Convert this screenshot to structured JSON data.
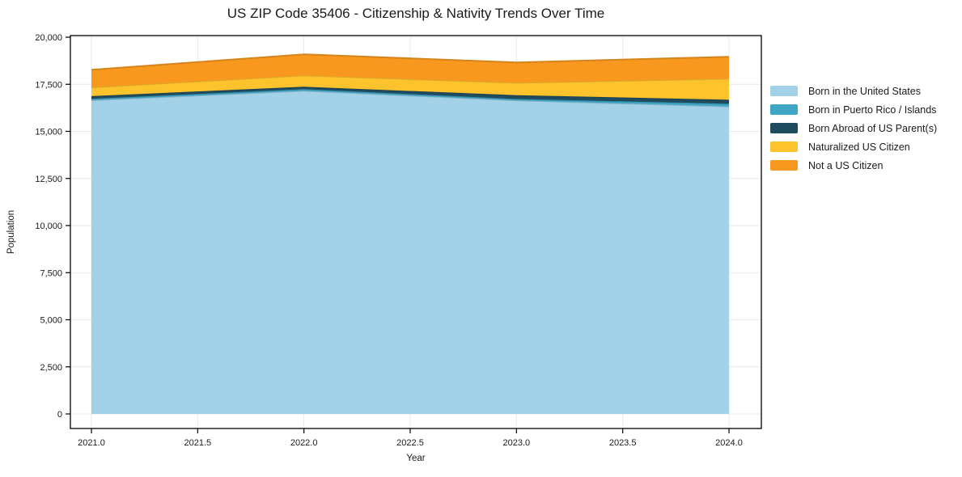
{
  "title": "US ZIP Code 35406 - Citizenship & Nativity Trends Over Time",
  "chart_data": {
    "type": "area",
    "stacked": true,
    "title": "US ZIP Code 35406 - Citizenship & Nativity Trends Over Time",
    "xlabel": "Year",
    "ylabel": "Population",
    "x": [
      2021,
      2022,
      2023,
      2024
    ],
    "x_tick_labels": [
      "2021.0",
      "2021.5",
      "2022.0",
      "2022.5",
      "2023.0",
      "2023.5",
      "2024.0"
    ],
    "y_tick_labels": [
      "0",
      "2,500",
      "5,000",
      "7,500",
      "10,000",
      "12,500",
      "15,000",
      "17,500",
      "20,000"
    ],
    "ylim": [
      0,
      20000
    ],
    "grid": true,
    "legend_position": "right-outside",
    "series": [
      {
        "name": "Born in the United States",
        "color": "#a3d2e8",
        "values": [
          16650,
          17150,
          16640,
          16320
        ]
      },
      {
        "name": "Born in Puerto Rico / Islands",
        "color": "#3fa6c6",
        "values": [
          80,
          90,
          80,
          150
        ]
      },
      {
        "name": "Born Abroad of US Parent(s)",
        "color": "#1f4b5f",
        "values": [
          140,
          130,
          200,
          210
        ]
      },
      {
        "name": "Naturalized US Citizen",
        "color": "#fdc32d",
        "values": [
          470,
          600,
          660,
          1120
        ]
      },
      {
        "name": "Not a US Citizen",
        "color": "#f8981f",
        "values": [
          930,
          1120,
          1080,
          1160
        ]
      }
    ],
    "stack_totals": [
      18270,
      19090,
      18660,
      18960
    ]
  }
}
